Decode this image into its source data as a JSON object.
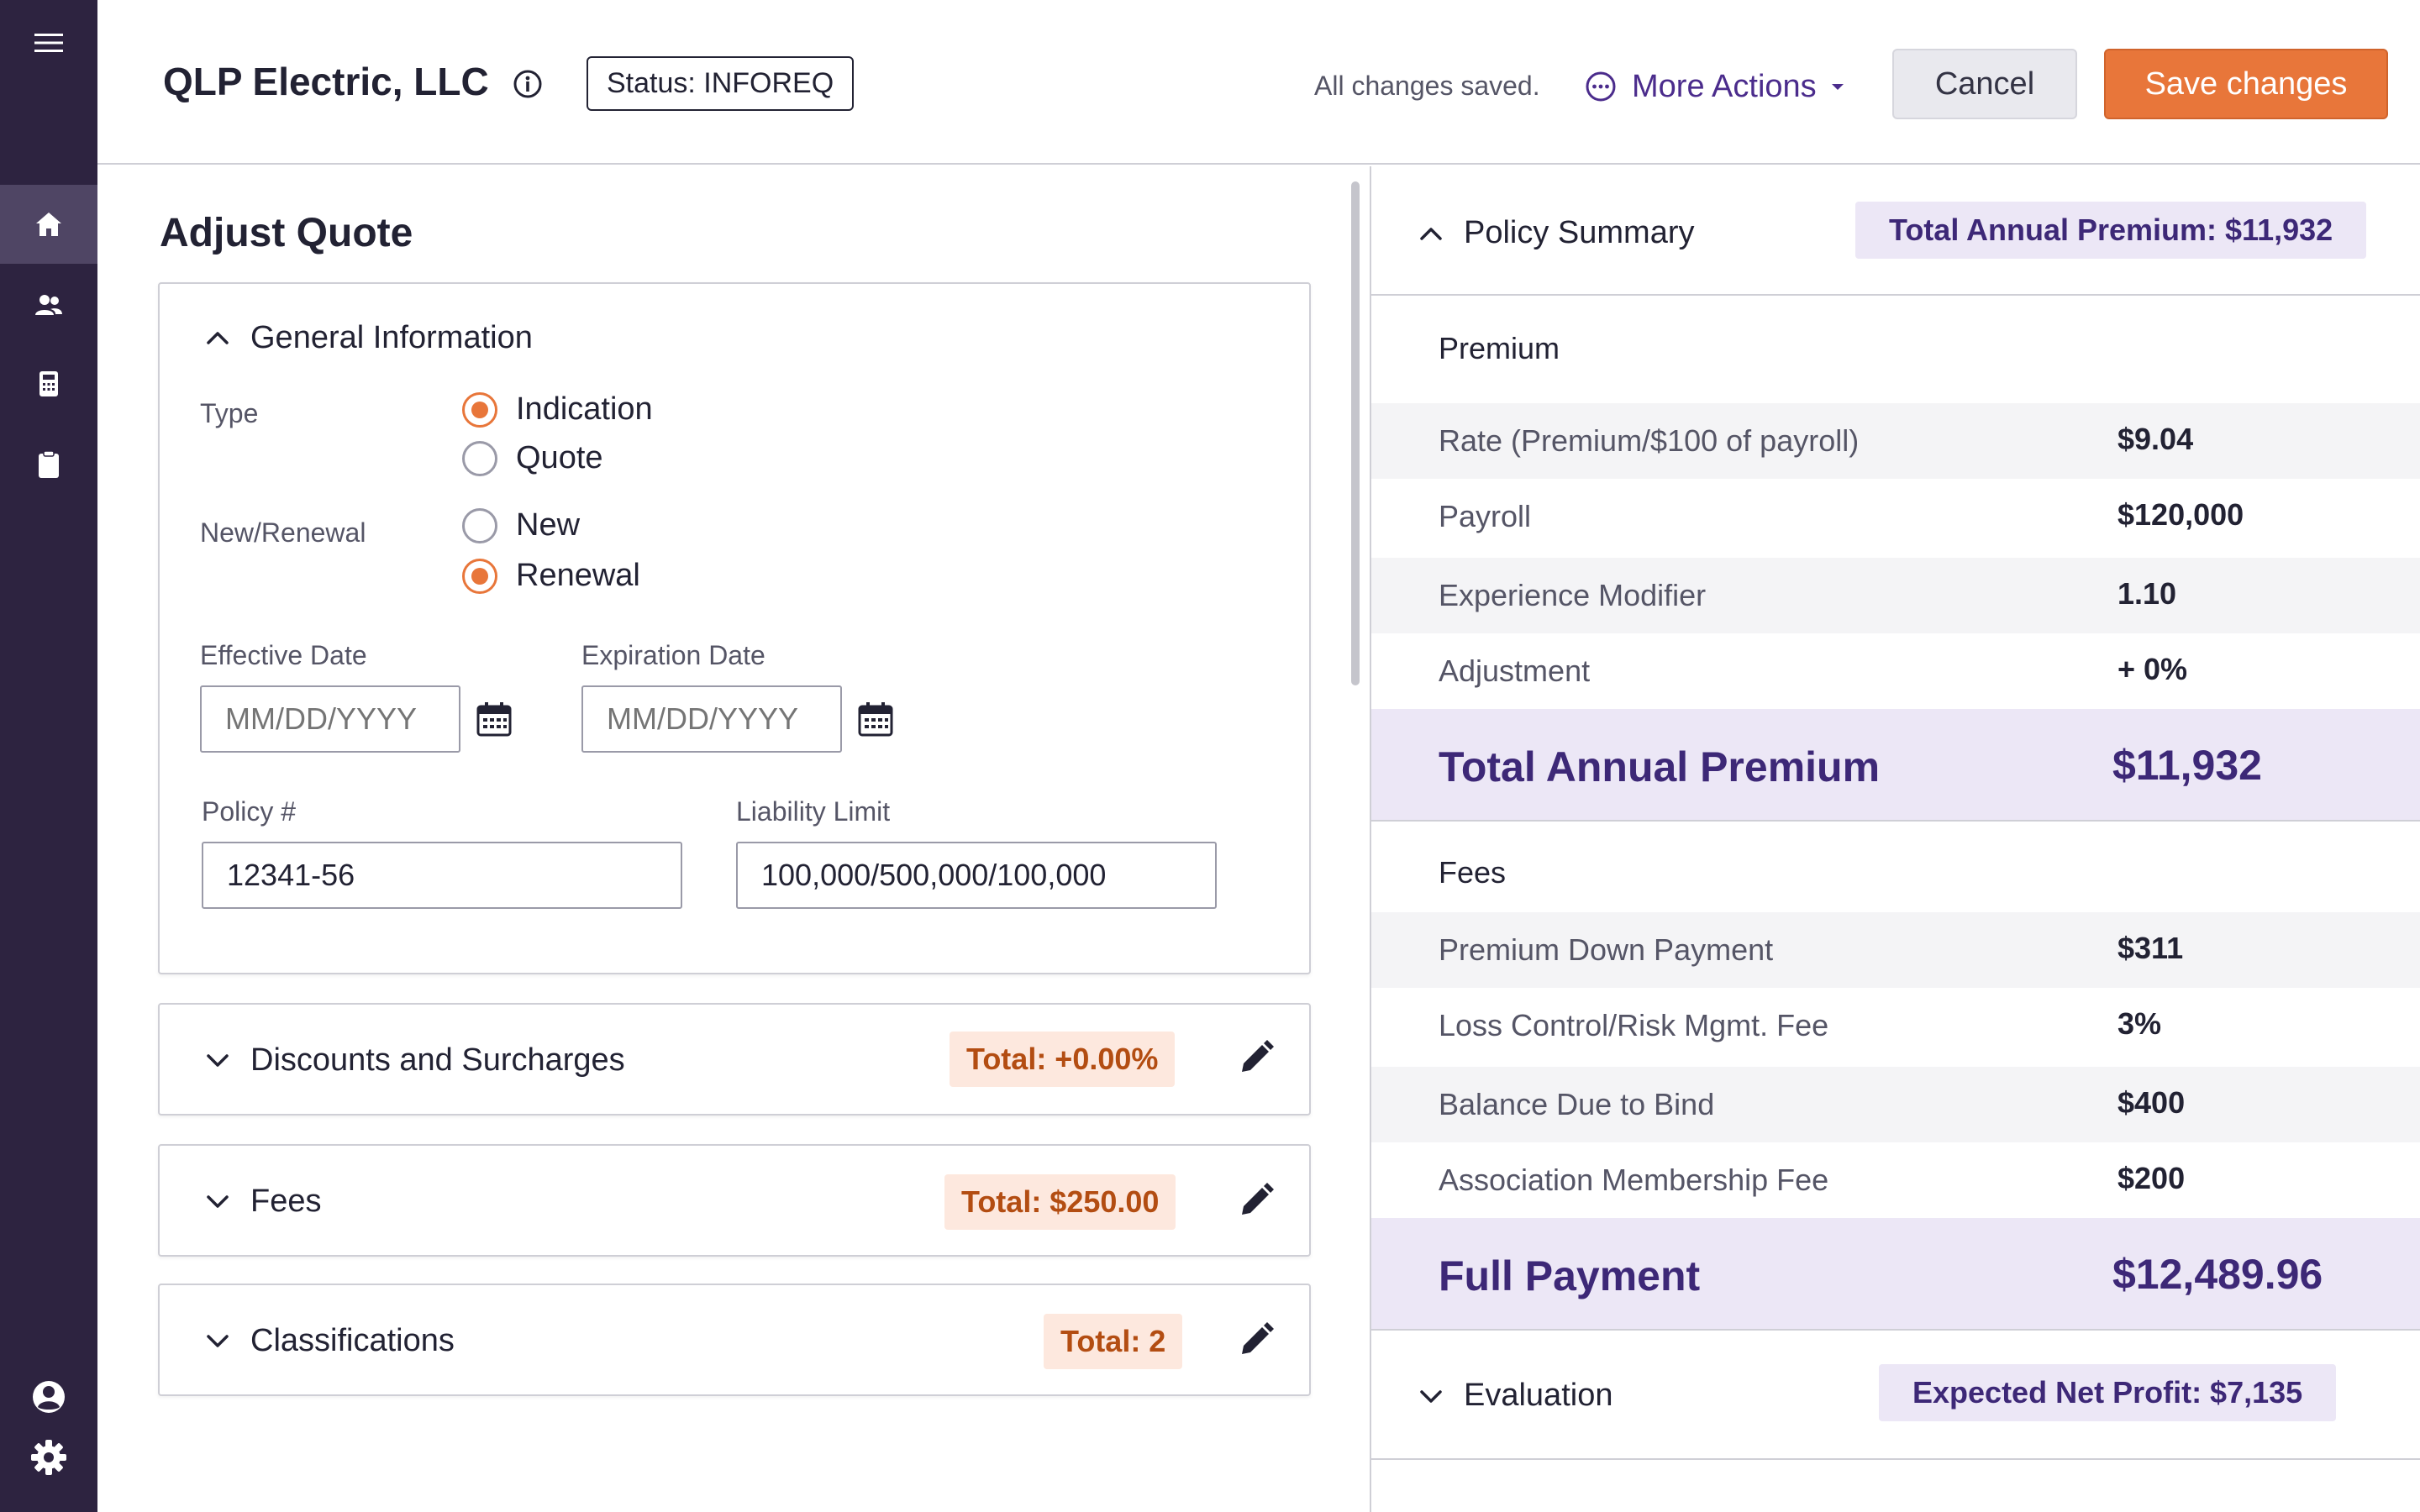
{
  "sidebar": {
    "items": [
      {
        "icon": "hamburger-menu-icon"
      },
      {
        "icon": "home-icon",
        "active": true
      },
      {
        "icon": "users-icon"
      },
      {
        "icon": "calculator-icon"
      },
      {
        "icon": "clipboard-icon"
      },
      {
        "icon": "account-icon"
      },
      {
        "icon": "settings-gear-icon"
      }
    ]
  },
  "header": {
    "company_name": "QLP Electric, LLC",
    "status_label": "Status: INFOREQ",
    "saved_text": "All changes saved.",
    "more_actions_label": "More Actions",
    "cancel_label": "Cancel",
    "save_label": "Save changes"
  },
  "main": {
    "page_title": "Adjust Quote",
    "general": {
      "title": "General Information",
      "type_label": "Type",
      "type_options": [
        {
          "label": "Indication",
          "selected": true
        },
        {
          "label": "Quote",
          "selected": false
        }
      ],
      "new_renewal_label": "New/Renewal",
      "new_renewal_options": [
        {
          "label": "New",
          "selected": false
        },
        {
          "label": "Renewal",
          "selected": true
        }
      ],
      "effective_date_label": "Effective Date",
      "effective_date_placeholder": "MM/DD/YYYY",
      "expiration_date_label": "Expiration Date",
      "expiration_date_placeholder": "MM/DD/YYYY",
      "policy_label": "Policy #",
      "policy_value": "12341-56",
      "liability_label": "Liability Limit",
      "liability_value": "100,000/500,000/100,000"
    },
    "sections": [
      {
        "title": "Discounts and Surcharges",
        "total": "Total: +0.00%"
      },
      {
        "title": "Fees",
        "total": "Total: $250.00"
      },
      {
        "title": "Classifications",
        "total": "Total: 2"
      }
    ]
  },
  "summary": {
    "title": "Policy Summary",
    "total_badge": "Total Annual Premium: $11,932",
    "premium_label": "Premium",
    "premium_rows": [
      {
        "label": "Rate (Premium/$100 of payroll)",
        "value": "$9.04"
      },
      {
        "label": "Payroll",
        "value": "$120,000"
      },
      {
        "label": "Experience Modifier",
        "value": "1.10"
      },
      {
        "label": "Adjustment",
        "value": "+ 0%"
      }
    ],
    "premium_total_label": "Total Annual Premium",
    "premium_total_value": "$11,932",
    "fees_label": "Fees",
    "fee_rows": [
      {
        "label": "Premium Down Payment",
        "value": "$311"
      },
      {
        "label": "Loss Control/Risk Mgmt. Fee",
        "value": "3%"
      },
      {
        "label": "Balance Due to Bind",
        "value": "$400"
      },
      {
        "label": "Association Membership Fee",
        "value": "$200"
      }
    ],
    "full_payment_label": "Full Payment",
    "full_payment_value": "$12,489.96",
    "evaluation_title": "Evaluation",
    "evaluation_badge": "Expected Net Profit: $7,135"
  },
  "colors": {
    "sidebar": "#2d2340",
    "accent": "#e8763a",
    "brand_purple": "#3d2877",
    "badge_orange_bg": "#fde8de"
  }
}
